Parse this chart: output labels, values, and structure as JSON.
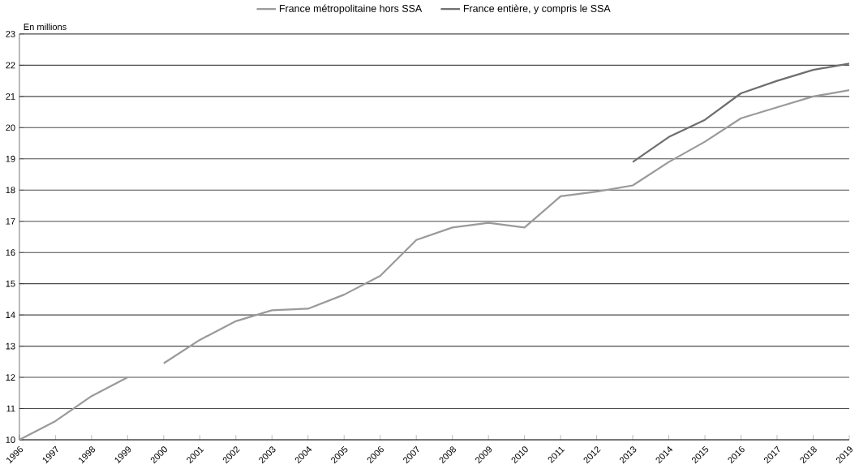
{
  "chart_data": {
    "type": "line",
    "ylabel": "En millions",
    "categories": [
      "1996",
      "1997",
      "1998",
      "1999",
      "2000",
      "2001",
      "2002",
      "2003",
      "2004",
      "2005",
      "2006",
      "2007",
      "2008",
      "2009",
      "2010",
      "2011",
      "2012",
      "2013",
      "2014",
      "2015",
      "2016",
      "2017",
      "2018",
      "2019"
    ],
    "series": [
      {
        "color": "#9a9a9a",
        "values": [
          10.0,
          10.6,
          11.4,
          12.0,
          null,
          null,
          null,
          null,
          null,
          null,
          null,
          null,
          null,
          null,
          null,
          null,
          null,
          null,
          null,
          null,
          null,
          null,
          null,
          null
        ]
      },
      {
        "name": "France métropolitaine hors SSA",
        "color": "#9a9a9a",
        "values": [
          null,
          null,
          null,
          null,
          12.45,
          13.2,
          13.8,
          14.15,
          14.2,
          14.65,
          15.25,
          16.4,
          16.8,
          16.95,
          16.8,
          17.8,
          17.95,
          18.15,
          18.9,
          19.55,
          20.3,
          20.65,
          21.0,
          21.2
        ]
      },
      {
        "name": "France entière, y compris le SSA",
        "color": "#6e6e6e",
        "values": [
          null,
          null,
          null,
          null,
          null,
          null,
          null,
          null,
          null,
          null,
          null,
          null,
          null,
          null,
          null,
          null,
          null,
          18.9,
          19.7,
          20.25,
          21.1,
          21.5,
          21.85,
          22.05
        ]
      }
    ],
    "ylim": [
      10,
      23
    ],
    "yticks": [
      10,
      11,
      12,
      13,
      14,
      15,
      16,
      17,
      18,
      19,
      20,
      21,
      22,
      23
    ],
    "grid": "y",
    "legend": "top",
    "marker": "none",
    "line_style": "solid"
  }
}
